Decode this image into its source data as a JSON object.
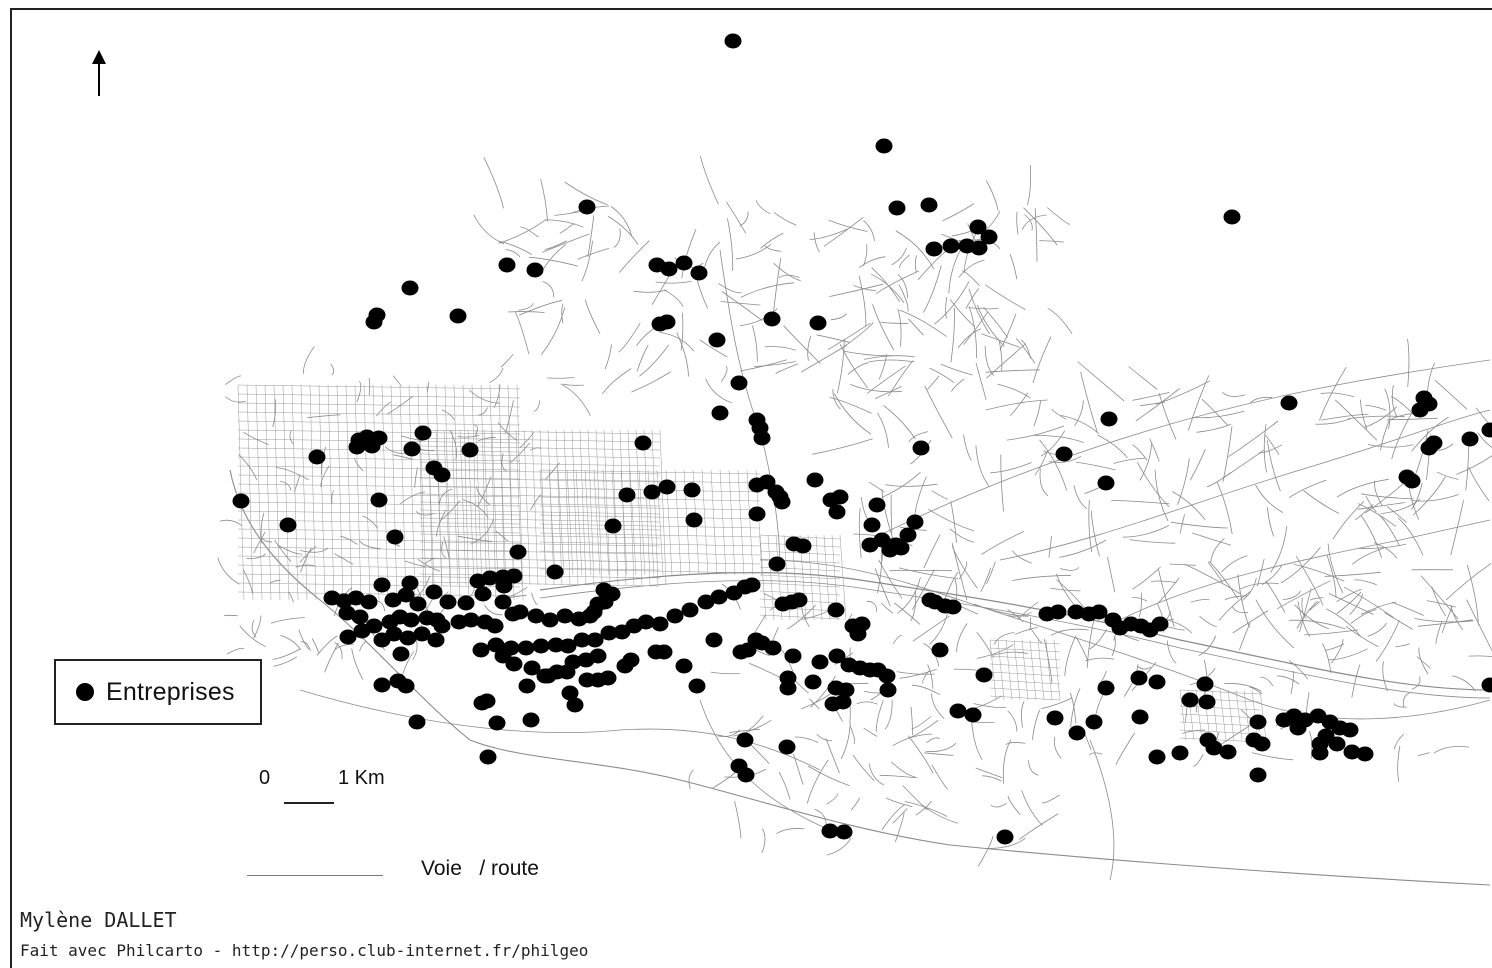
{
  "legend": {
    "label": "Entreprises"
  },
  "scale": {
    "zero": "0",
    "length": "1 Km"
  },
  "road_legend": {
    "label": "Voie   / route"
  },
  "credits": {
    "author": "Mylène DALLET",
    "made_with": "Fait avec Philcarto - http://perso.club-internet.fr/philgeo"
  },
  "colors": {
    "dot": "#000000",
    "road": "#8a8a8a",
    "frame": "#222222"
  },
  "icons": {
    "north": "north-arrow-icon"
  }
}
